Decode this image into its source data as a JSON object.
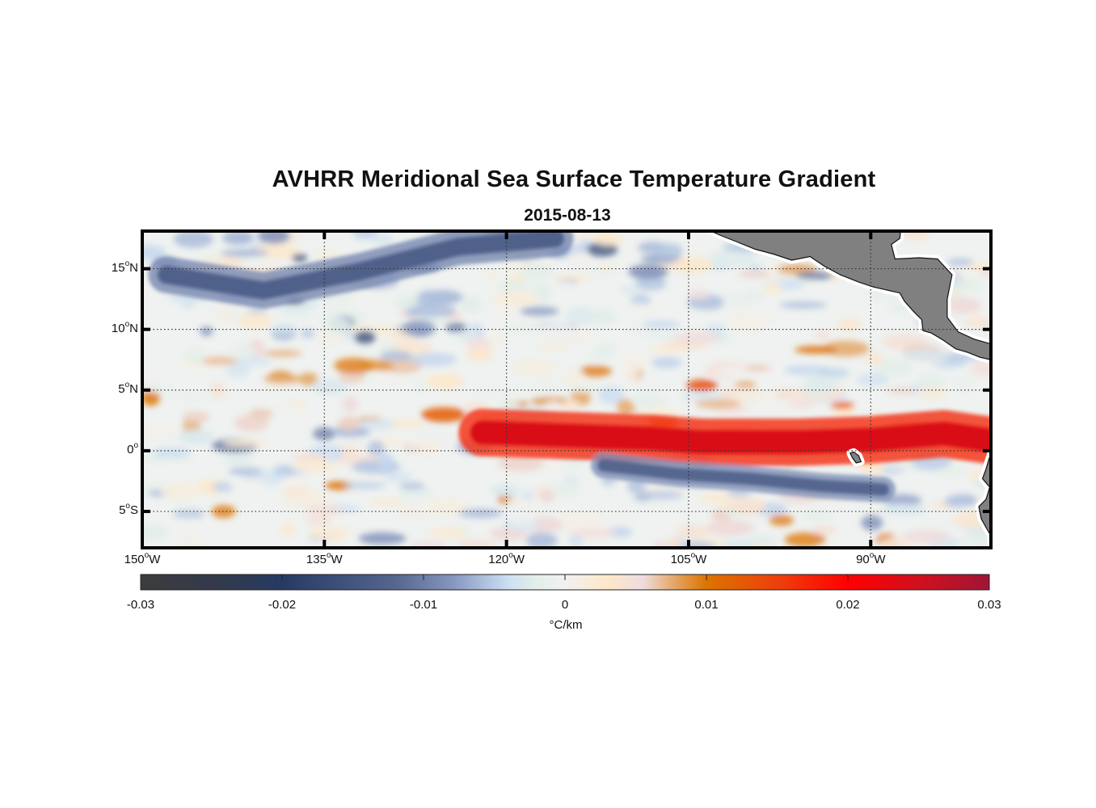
{
  "chart_data": {
    "type": "heatmap",
    "title": "AVHRR Meridional Sea Surface Temperature Gradient",
    "subtitle": "2015-08-13",
    "xlim": [
      -150,
      -80.1
    ],
    "ylim": [
      -8.0,
      18.1
    ],
    "grid": true,
    "x_ticks": [
      {
        "value": -150,
        "num": "150",
        "hemi": "W"
      },
      {
        "value": -135,
        "num": "135",
        "hemi": "W"
      },
      {
        "value": -120,
        "num": "120",
        "hemi": "W"
      },
      {
        "value": -105,
        "num": "105",
        "hemi": "W"
      },
      {
        "value": -90,
        "num": "90",
        "hemi": "W"
      }
    ],
    "y_ticks": [
      {
        "value": 15,
        "num": "15",
        "hemi": "N"
      },
      {
        "value": 10,
        "num": "10",
        "hemi": "N"
      },
      {
        "value": 5,
        "num": "5",
        "hemi": "N"
      },
      {
        "value": 0,
        "num": "0",
        "hemi": ""
      },
      {
        "value": -5,
        "num": "5",
        "hemi": "S"
      }
    ],
    "degree_symbol": "o",
    "colorbar": {
      "range": [
        -0.03,
        0.03
      ],
      "ticks": [
        {
          "value": -0.03,
          "label": "-0.03"
        },
        {
          "value": -0.02,
          "label": "-0.02"
        },
        {
          "value": -0.01,
          "label": "-0.01"
        },
        {
          "value": 0,
          "label": "0"
        },
        {
          "value": 0.01,
          "label": "0.01"
        },
        {
          "value": 0.02,
          "label": "0.02"
        },
        {
          "value": 0.03,
          "label": "0.03"
        }
      ],
      "unit": "°C/km",
      "colormap": [
        {
          "v": -0.03,
          "c": "#3c3c3c"
        },
        {
          "v": -0.024,
          "c": "#323a4e"
        },
        {
          "v": -0.02,
          "c": "#253a63"
        },
        {
          "v": -0.012,
          "c": "#55668f"
        },
        {
          "v": -0.008,
          "c": "#8595bd"
        },
        {
          "v": -0.004,
          "c": "#cddff4"
        },
        {
          "v": -0.002,
          "c": "#e3efe8"
        },
        {
          "v": 0.0,
          "c": "#f1f1f1"
        },
        {
          "v": 0.003,
          "c": "#fde8c8"
        },
        {
          "v": 0.0055,
          "c": "#efdce0"
        },
        {
          "v": 0.008,
          "c": "#e3a05a"
        },
        {
          "v": 0.01,
          "c": "#dc7400"
        },
        {
          "v": 0.0155,
          "c": "#ef3a0c"
        },
        {
          "v": 0.02,
          "c": "#ff0000"
        },
        {
          "v": 0.025,
          "c": "#d0101e"
        },
        {
          "v": 0.03,
          "c": "#a01535"
        }
      ]
    },
    "features": [
      {
        "name": "equatorial front",
        "lon": [
          -122,
          -108,
          -104,
          -96,
          -90,
          -84,
          -80.5
        ],
        "lat": [
          1.5,
          1.0,
          0.7,
          0.7,
          0.9,
          1.4,
          0.9
        ],
        "value": 0.024,
        "width": 1.3
      },
      {
        "name": "south-equatorial negative band",
        "lon": [
          -112,
          -106,
          -100,
          -94,
          -89
        ],
        "lat": [
          -1.2,
          -1.9,
          -2.3,
          -2.9,
          -3.2
        ],
        "value": -0.012,
        "width": 0.7
      },
      {
        "name": "north-west negative band",
        "lon": [
          -148,
          -140,
          -132,
          -124,
          -116
        ],
        "lat": [
          14.5,
          13.2,
          14.8,
          16.8,
          17.5
        ],
        "value": -0.013,
        "width": 1.0
      }
    ],
    "land_color": "#808080",
    "grid_color": "#333333"
  }
}
